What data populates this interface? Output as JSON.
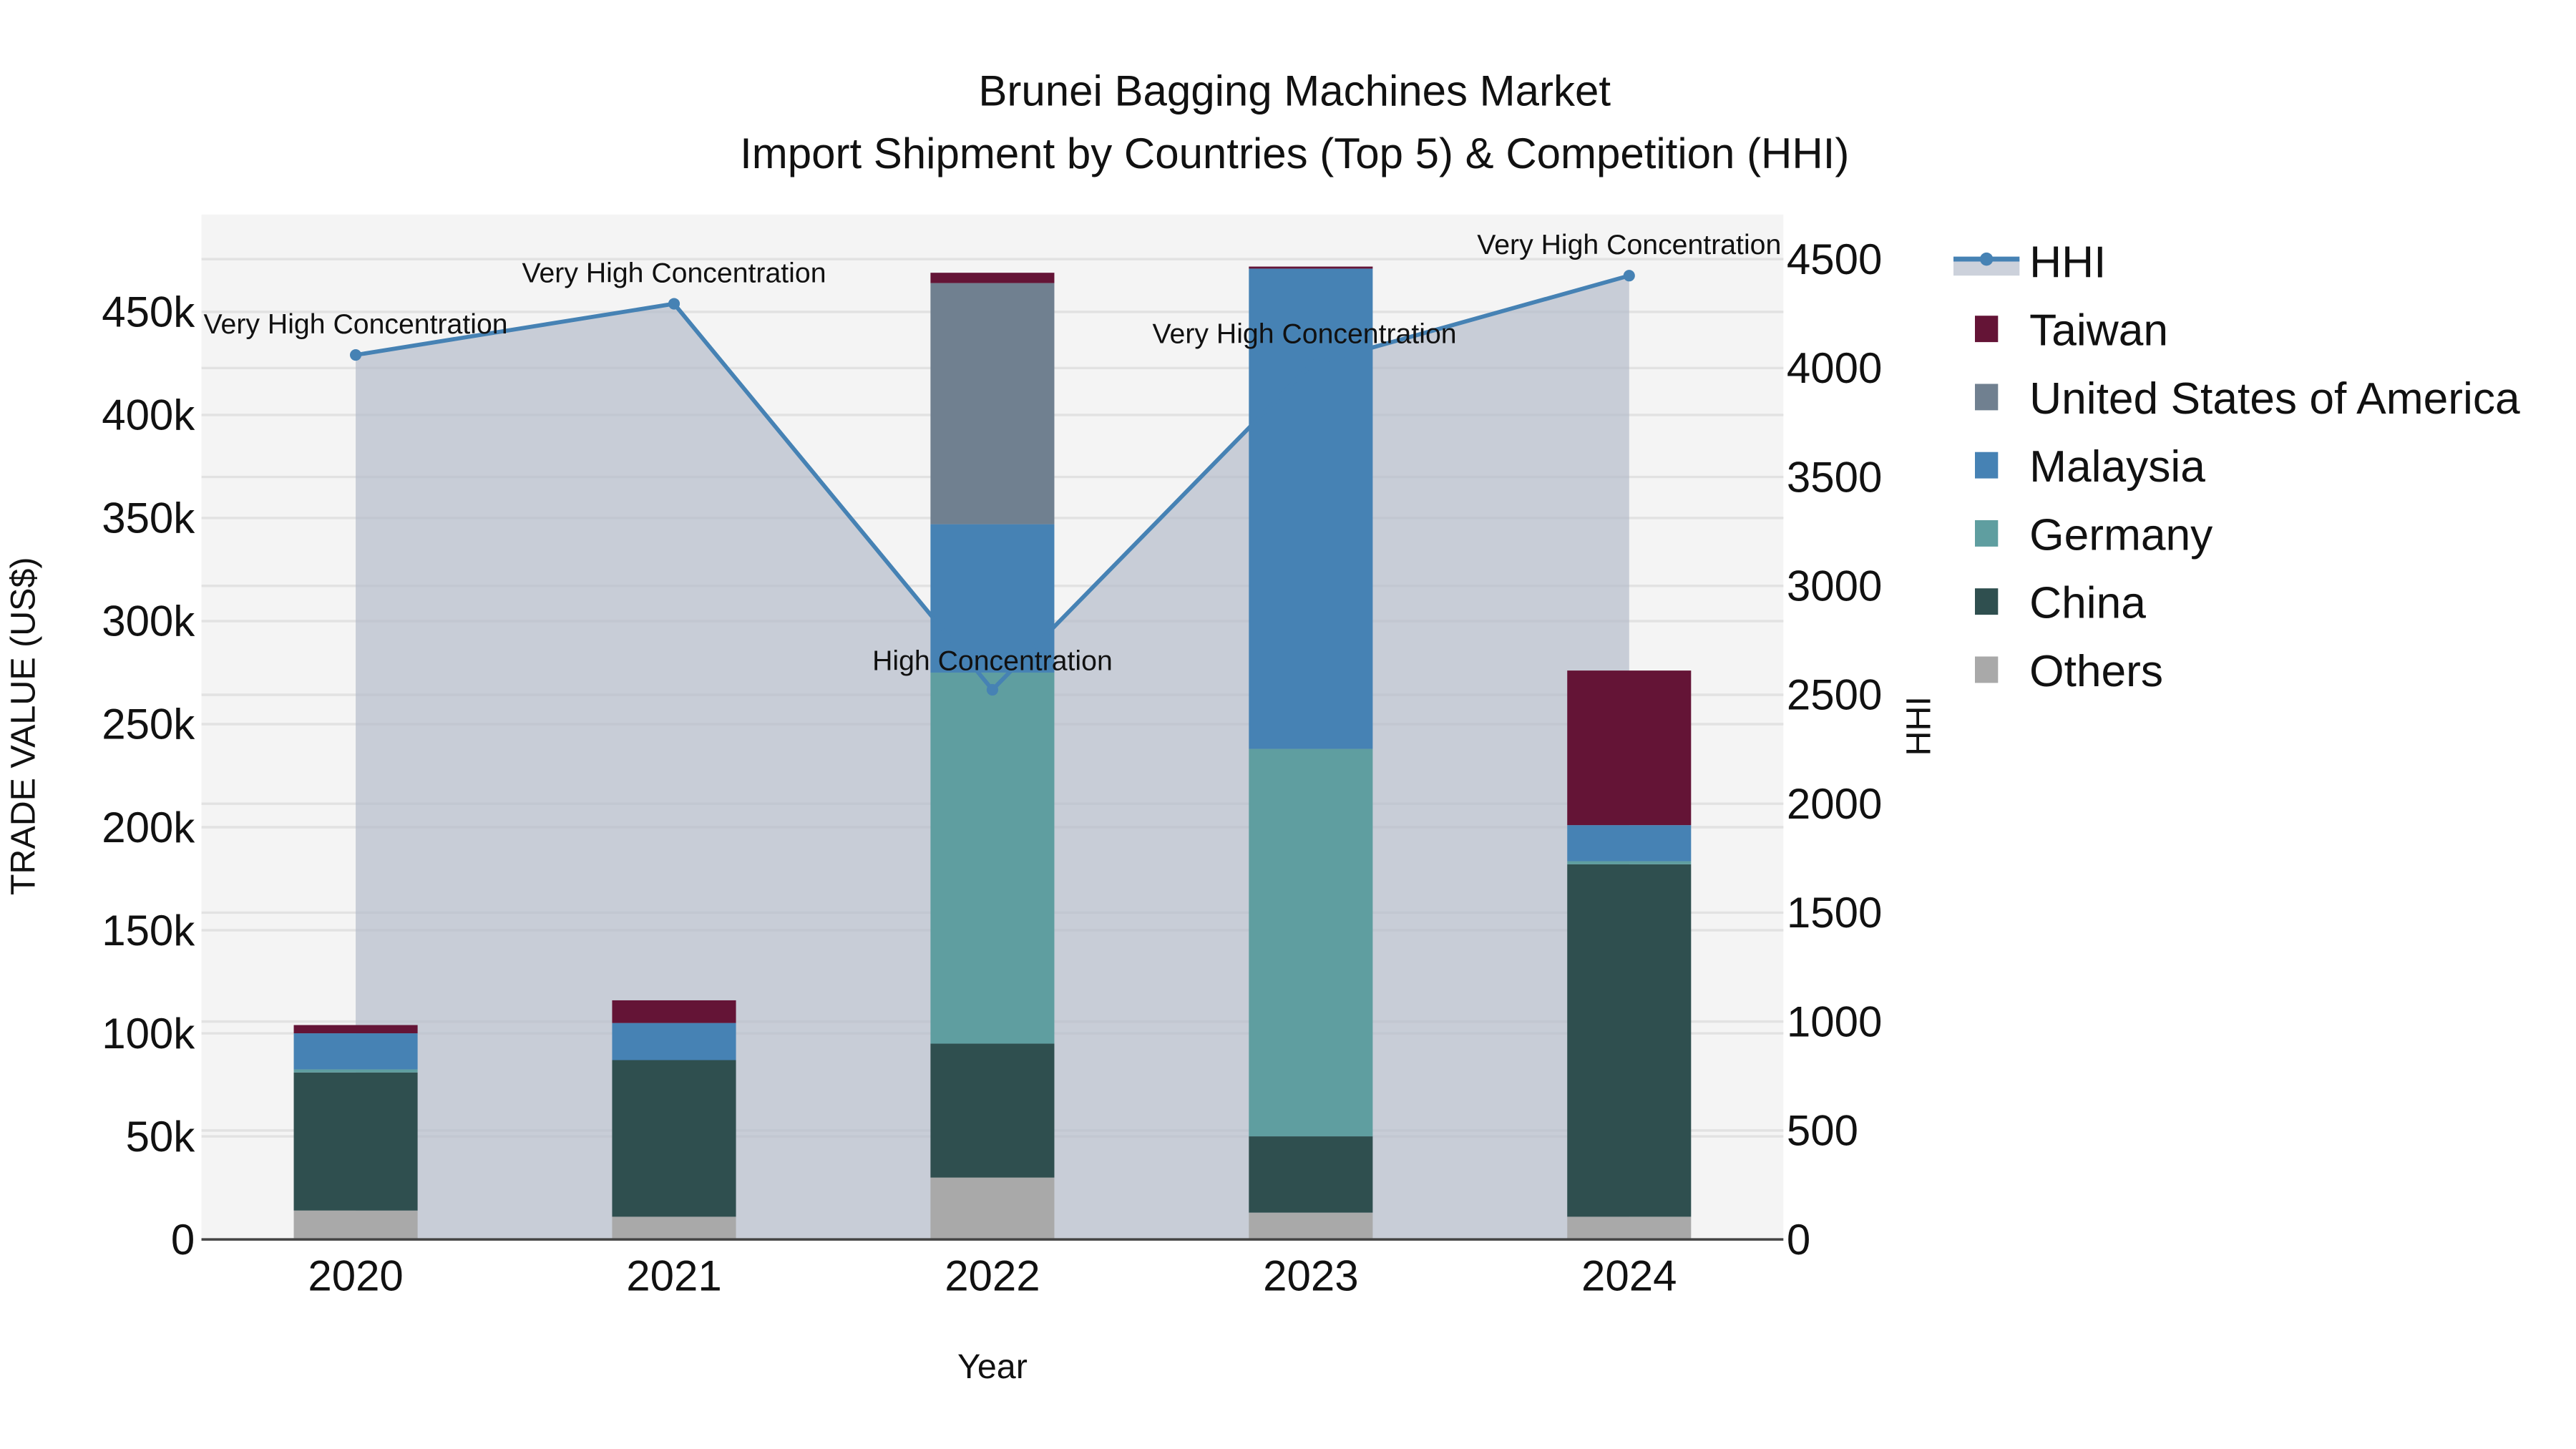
{
  "chart_data": {
    "type": "bar",
    "subtype": "stacked bar with line on secondary axis",
    "title": "Brunei Bagging Machines Market",
    "subtitle": "Import Shipment by Countries (Top 5) & Competition (HHI)",
    "xlabel": "Year",
    "ylabel": "TRADE VALUE (US$)",
    "y2label": "HHI",
    "categories": [
      "2020",
      "2021",
      "2022",
      "2023",
      "2024"
    ],
    "ylim": [
      0,
      490000
    ],
    "y_ticks": [
      0,
      50000,
      100000,
      150000,
      200000,
      250000,
      300000,
      350000,
      400000,
      450000
    ],
    "y_tick_labels": [
      "0",
      "50k",
      "100k",
      "150k",
      "200k",
      "250k",
      "300k",
      "350k",
      "400k",
      "450k"
    ],
    "y2lim": [
      0,
      4650
    ],
    "y2_ticks": [
      0,
      500,
      1000,
      1500,
      2000,
      2500,
      3000,
      3500,
      4000,
      4500
    ],
    "y2_tick_labels": [
      "0",
      "500",
      "1000",
      "1500",
      "2000",
      "2500",
      "3000",
      "3500",
      "4000",
      "4500"
    ],
    "grid": true,
    "legend_position": "right",
    "series": [
      {
        "name": "Others",
        "color": "#A9A9A9",
        "values": [
          14000,
          11000,
          30000,
          13000,
          11000
        ]
      },
      {
        "name": "China",
        "color": "#2F4F4F",
        "values": [
          67000,
          76000,
          65000,
          37000,
          171000
        ]
      },
      {
        "name": "Germany",
        "color": "#5F9EA0",
        "values": [
          1500,
          0,
          180000,
          188000,
          1500
        ]
      },
      {
        "name": "Malaysia",
        "color": "#4682B4",
        "values": [
          17500,
          18000,
          72000,
          233000,
          17500
        ]
      },
      {
        "name": "United States of America",
        "color": "#708090",
        "values": [
          0,
          0,
          117000,
          0,
          0
        ]
      },
      {
        "name": "Taiwan",
        "color": "#641436",
        "values": [
          4000,
          11000,
          5000,
          1000,
          75000
        ]
      }
    ],
    "line_series": {
      "name": "HHI",
      "axis": "y2",
      "color": "#4682B4",
      "fill_color": "#B0B8C8",
      "values": [
        4060,
        4295,
        2523,
        4015,
        4424
      ],
      "annotations": [
        "Very High Concentration",
        "Very High Concentration",
        "High Concentration",
        "Very High Concentration",
        "Very High Concentration"
      ]
    },
    "legend": [
      "HHI",
      "Taiwan",
      "United States of America",
      "Malaysia",
      "Germany",
      "China",
      "Others"
    ]
  }
}
